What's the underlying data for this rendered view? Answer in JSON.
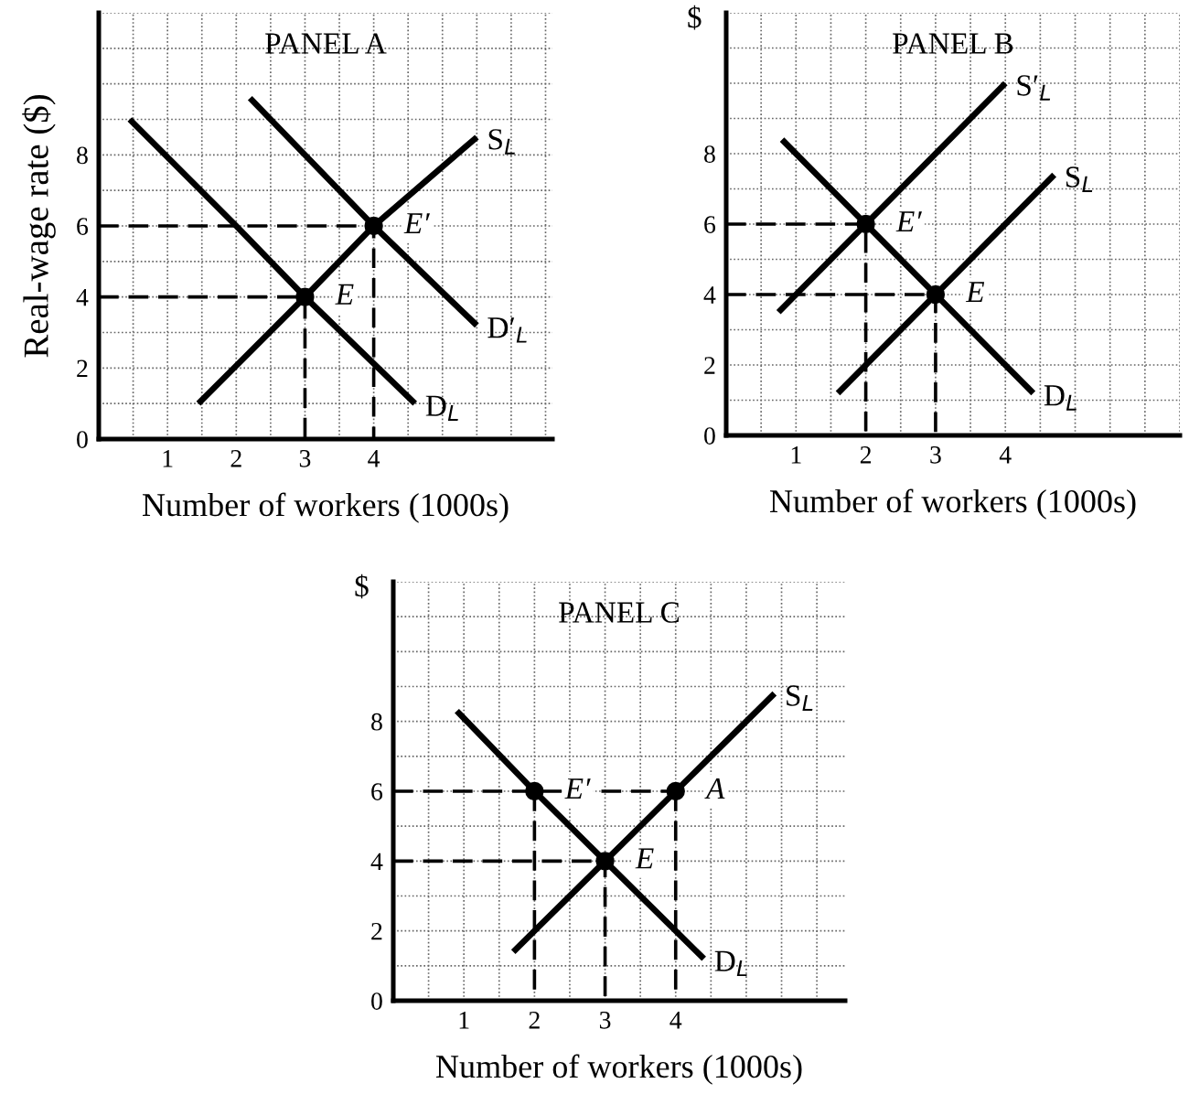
{
  "chart_data": [
    {
      "type": "line",
      "title": "PANEL A",
      "xlabel": "Number of workers (1000s)",
      "ylabel": "Real-wage rate ($)",
      "xlim": [
        0,
        6.6
      ],
      "ylim": [
        0,
        12
      ],
      "xticks": [
        {
          "value": 0.5,
          "label": null
        },
        1,
        {
          "value": 1.5,
          "label": null
        },
        2,
        {
          "value": 2.5,
          "label": null
        },
        3,
        {
          "value": 3.5,
          "label": null
        },
        4,
        {
          "value": 4.5,
          "label": null
        },
        {
          "value": 5,
          "label": null
        },
        {
          "value": 5.5,
          "label": null
        },
        {
          "value": 6,
          "label": null
        },
        {
          "value": 6.5,
          "label": null
        }
      ],
      "yticks": [
        0,
        {
          "value": 1,
          "label": null
        },
        2,
        {
          "value": 3,
          "label": null
        },
        4,
        {
          "value": 5,
          "label": null
        },
        6,
        {
          "value": 7,
          "label": null
        },
        8,
        {
          "value": 9,
          "label": null
        },
        {
          "value": 10,
          "label": null
        },
        {
          "value": 11,
          "label": null
        },
        {
          "value": 12,
          "label": null
        }
      ],
      "grid": true,
      "series": [
        {
          "name": "D$_{L}$",
          "color": "#000000",
          "line_style": "solid",
          "x": [
            0.45,
            2,
            3,
            4.6
          ],
          "values": [
            9,
            6,
            4,
            1
          ]
        },
        {
          "name": "S$_{L}$",
          "color": "#000000",
          "line_style": "solid",
          "x": [
            1.45,
            3,
            4,
            5.5
          ],
          "values": [
            1,
            4,
            6,
            8.5
          ]
        },
        {
          "name": "D′$_{L}$",
          "color": "#000000",
          "line_style": "solid",
          "x": [
            2.2,
            4,
            5.5
          ],
          "values": [
            9.6,
            6,
            3.2
          ]
        },
        {
          "color": "#000000",
          "line_style": "dashed",
          "x": [
            0,
            3,
            3
          ],
          "values": [
            4,
            4,
            0
          ]
        },
        {
          "color": "#000000",
          "line_style": "dashed",
          "x": [
            0,
            4,
            4
          ],
          "values": [
            6,
            6,
            0
          ]
        },
        {
          "type": "scatter",
          "marker": "circle",
          "color": "#000000",
          "x": [
            3,
            4
          ],
          "values": [
            4,
            6
          ]
        }
      ],
      "annotations": [
        {
          "text": "E",
          "x": 3,
          "y": 4
        },
        {
          "text": "E′",
          "x": 4,
          "y": 6
        }
      ]
    },
    {
      "type": "line",
      "title": "PANEL B",
      "xlabel": "Number of workers (1000s)",
      "ylabel": "$",
      "xlim": [
        0,
        6.5
      ],
      "ylim": [
        0,
        12
      ],
      "xticks": [
        {
          "value": 0.5,
          "label": null
        },
        1,
        {
          "value": 1.5,
          "label": null
        },
        2,
        {
          "value": 2.5,
          "label": null
        },
        3,
        {
          "value": 3.5,
          "label": null
        },
        4,
        {
          "value": 4.5,
          "label": null
        },
        {
          "value": 5,
          "label": null
        },
        {
          "value": 5.5,
          "label": null
        },
        {
          "value": 6,
          "label": null
        },
        {
          "value": 6.5,
          "label": null
        }
      ],
      "yticks": [
        0,
        {
          "value": 1,
          "label": null
        },
        2,
        {
          "value": 3,
          "label": null
        },
        4,
        {
          "value": 5,
          "label": null
        },
        6,
        {
          "value": 7,
          "label": null
        },
        8,
        {
          "value": 9,
          "label": null
        },
        {
          "value": 10,
          "label": null
        },
        {
          "value": 11,
          "label": null
        },
        {
          "value": 12,
          "label": null
        }
      ],
      "grid": true,
      "series": [
        {
          "name": "D$_{L}$",
          "color": "#000000",
          "line_style": "solid",
          "x": [
            0.8,
            2,
            3,
            4.4
          ],
          "values": [
            8.4,
            6,
            4,
            1.2
          ]
        },
        {
          "name": "S′$_{L}$",
          "color": "#000000",
          "line_style": "solid",
          "x": [
            0.75,
            2,
            4
          ],
          "values": [
            3.5,
            6,
            10
          ]
        },
        {
          "name": "S$_{L}$",
          "color": "#000000",
          "line_style": "solid",
          "x": [
            1.6,
            3,
            4.7
          ],
          "values": [
            1.2,
            4,
            7.4
          ]
        },
        {
          "color": "#000000",
          "line_style": "dashed",
          "x": [
            0,
            2,
            2
          ],
          "values": [
            6,
            6,
            0
          ]
        },
        {
          "color": "#000000",
          "line_style": "dashed",
          "x": [
            0,
            3,
            3
          ],
          "values": [
            4,
            4,
            0
          ]
        },
        {
          "type": "scatter",
          "marker": "circle",
          "color": "#000000",
          "x": [
            2,
            3
          ],
          "values": [
            6,
            4
          ]
        }
      ],
      "annotations": [
        {
          "text": "E′",
          "x": 2,
          "y": 6
        },
        {
          "text": "E",
          "x": 3,
          "y": 4
        }
      ]
    },
    {
      "type": "line",
      "title": "PANEL C",
      "xlabel": "Number of workers (1000s)",
      "ylabel": "$",
      "xlim": [
        0,
        6.4
      ],
      "ylim": [
        0,
        12
      ],
      "xticks": [
        {
          "value": 0.5,
          "label": null
        },
        1,
        {
          "value": 1.5,
          "label": null
        },
        2,
        {
          "value": 2.5,
          "label": null
        },
        3,
        {
          "value": 3.5,
          "label": null
        },
        4,
        {
          "value": 4.5,
          "label": null
        },
        {
          "value": 5,
          "label": null
        },
        {
          "value": 5.5,
          "label": null
        },
        {
          "value": 6,
          "label": null
        }
      ],
      "yticks": [
        0,
        {
          "value": 1,
          "label": null
        },
        2,
        {
          "value": 3,
          "label": null
        },
        4,
        {
          "value": 5,
          "label": null
        },
        6,
        {
          "value": 7,
          "label": null
        },
        8,
        {
          "value": 9,
          "label": null
        },
        {
          "value": 10,
          "label": null
        },
        {
          "value": 11,
          "label": null
        },
        {
          "value": 12,
          "label": null
        }
      ],
      "grid": true,
      "series": [
        {
          "name": "D$_{L}$",
          "color": "#000000",
          "line_style": "solid",
          "x": [
            0.9,
            2,
            3,
            4.4
          ],
          "values": [
            8.3,
            6,
            4,
            1.2
          ]
        },
        {
          "name": "S$_{L}$",
          "color": "#000000",
          "line_style": "solid",
          "x": [
            1.7,
            3,
            4,
            5.4
          ],
          "values": [
            1.4,
            4,
            6,
            8.8
          ]
        },
        {
          "color": "#000000",
          "line_style": "dashed",
          "x": [
            0,
            4
          ],
          "values": [
            6,
            6
          ]
        },
        {
          "color": "#000000",
          "line_style": "dashed",
          "x": [
            2,
            2
          ],
          "values": [
            6,
            0
          ]
        },
        {
          "color": "#000000",
          "line_style": "dashed",
          "x": [
            4,
            4
          ],
          "values": [
            6,
            0
          ]
        },
        {
          "color": "#000000",
          "line_style": "dashed",
          "x": [
            0,
            3,
            3
          ],
          "values": [
            4,
            4,
            0
          ]
        },
        {
          "type": "scatter",
          "marker": "circle",
          "color": "#000000",
          "x": [
            2,
            3,
            4
          ],
          "values": [
            6,
            4,
            6
          ]
        }
      ],
      "annotations": [
        {
          "text": "E′",
          "x": 2,
          "y": 6
        },
        {
          "text": "E",
          "x": 3,
          "y": 4
        },
        {
          "text": "A",
          "x": 4,
          "y": 6
        }
      ]
    }
  ]
}
